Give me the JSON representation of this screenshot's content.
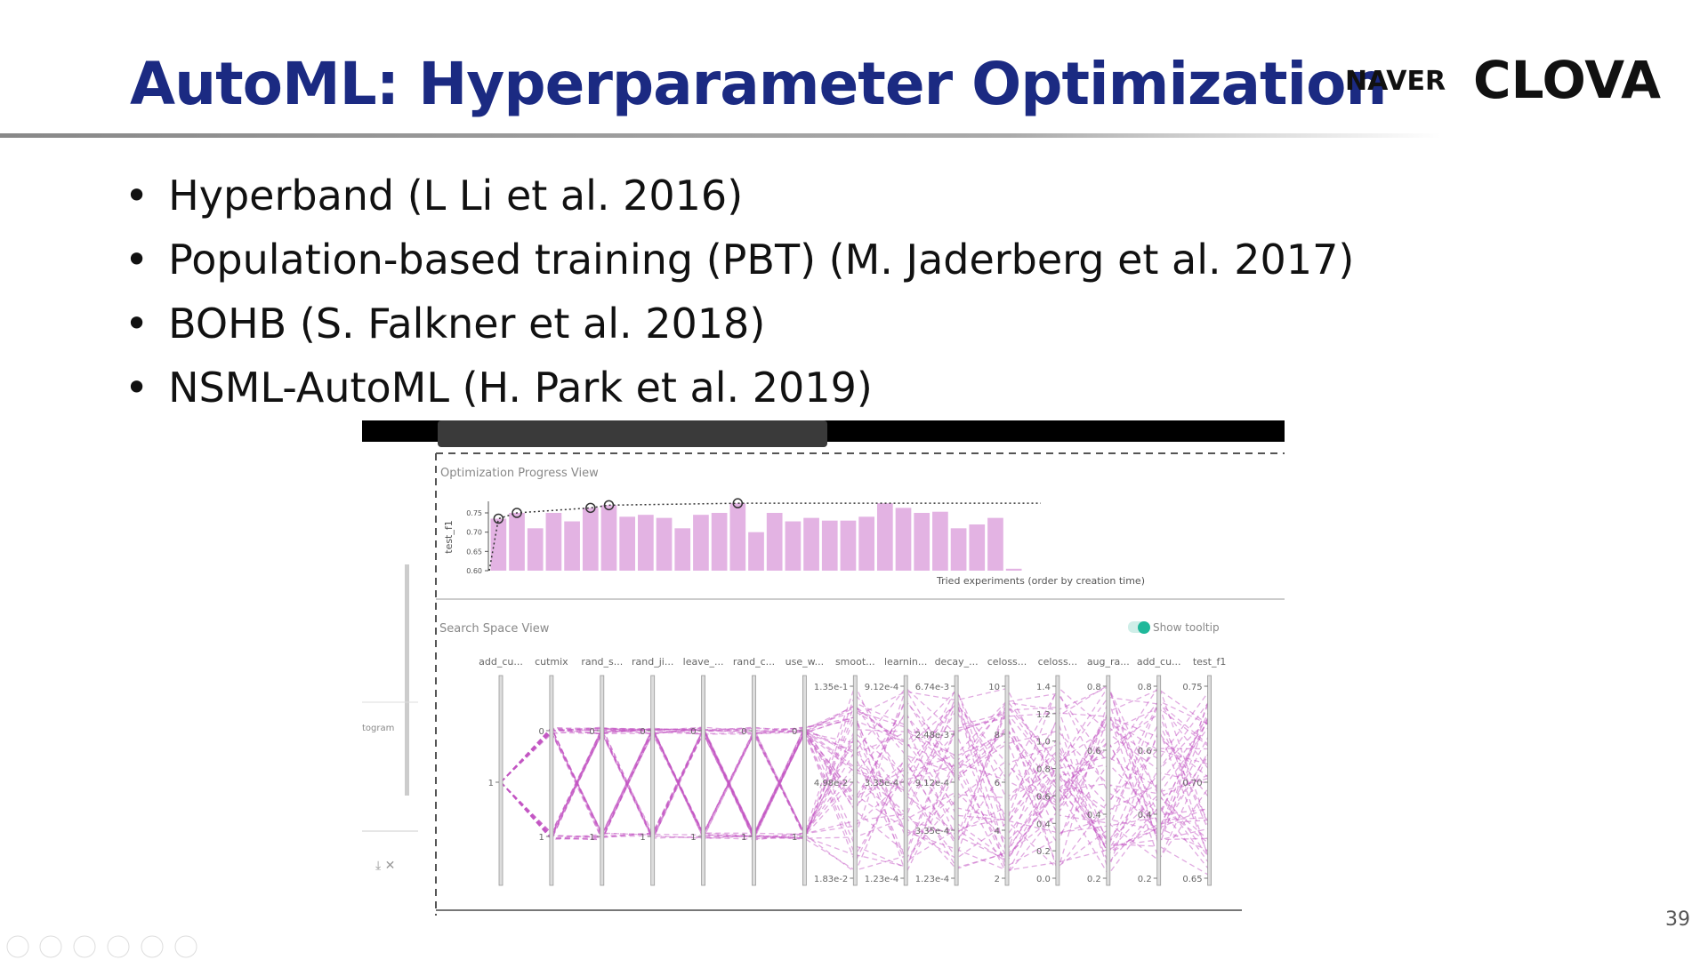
{
  "header": {
    "title": "AutoML: Hyperparameter Optimization",
    "logo_naver": "NAVER",
    "logo_clova": "CLOVA"
  },
  "bullets": [
    "Hyperband (L Li et al. 2016)",
    "Population-based training (PBT) (M. Jaderberg et al. 2017)",
    "BOHB (S. Falkner et al. 2018)",
    "NSML-AutoML (H. Park et al. 2019)"
  ],
  "embedded": {
    "side_tab": "togram",
    "progress_view": {
      "title": "Optimization Progress View",
      "chart_data": {
        "type": "bar",
        "ylabel": "test_f1",
        "xlabel": "Tried experiments (order by creation time)",
        "color": "#e3b3e3",
        "values": [
          0.735,
          0.75,
          0.71,
          0.75,
          0.728,
          0.763,
          0.77,
          0.74,
          0.745,
          0.737,
          0.71,
          0.745,
          0.75,
          0.775,
          0.7,
          0.75,
          0.728,
          0.737,
          0.73,
          0.73,
          0.74,
          0.775,
          0.763,
          0.75,
          0.753,
          0.71,
          0.72,
          0.737,
          0.605
        ],
        "ylim": [
          0.6,
          0.78
        ],
        "yticks": [
          {
            "value": 0.6,
            "label": "0.60"
          },
          {
            "value": 0.65,
            "label": "0.65"
          },
          {
            "value": 0.7,
            "label": "0.70"
          },
          {
            "value": 0.75,
            "label": "0.75"
          }
        ]
      }
    },
    "search_space_view": {
      "title": "Search Space View",
      "toggle": "Show tooltip",
      "axes": [
        {
          "name": "add_cu...",
          "ticks": [
            "1"
          ]
        },
        {
          "name": "cutmix",
          "ticks": [
            "0",
            "1"
          ]
        },
        {
          "name": "rand_s...",
          "ticks": [
            "0",
            "1"
          ]
        },
        {
          "name": "rand_ji...",
          "ticks": [
            "0",
            "1"
          ]
        },
        {
          "name": "leave_...",
          "ticks": [
            "0",
            "1"
          ]
        },
        {
          "name": "rand_c...",
          "ticks": [
            "0",
            "1"
          ]
        },
        {
          "name": "use_w...",
          "ticks": [
            "0",
            "1"
          ]
        },
        {
          "name": "smoot...",
          "ticks": [
            "1.35e-1",
            "4.98e-2",
            "1.83e-2"
          ]
        },
        {
          "name": "learnin...",
          "ticks": [
            "9.12e-4",
            "3.35e-4",
            "1.23e-4"
          ]
        },
        {
          "name": "decay_...",
          "ticks": [
            "6.74e-3",
            "2.48e-3",
            "9.12e-4",
            "3.35e-4",
            "1.23e-4"
          ]
        },
        {
          "name": "celoss...",
          "ticks": [
            "10",
            "8",
            "6",
            "4",
            "2"
          ]
        },
        {
          "name": "celoss...",
          "ticks": [
            "1.4",
            "1.2",
            "1.0",
            "0.8",
            "0.6",
            "0.4",
            "0.2",
            "0.0"
          ]
        },
        {
          "name": "aug_ra...",
          "ticks": [
            "0.8",
            "0.6",
            "0.4",
            "0.2"
          ]
        },
        {
          "name": "add_cu...",
          "ticks": [
            "0.8",
            "0.6",
            "0.4",
            "0.2"
          ]
        },
        {
          "name": "test_f1",
          "ticks": [
            "0.75",
            "0.70",
            "0.65"
          ]
        }
      ]
    }
  },
  "page_number": 39
}
